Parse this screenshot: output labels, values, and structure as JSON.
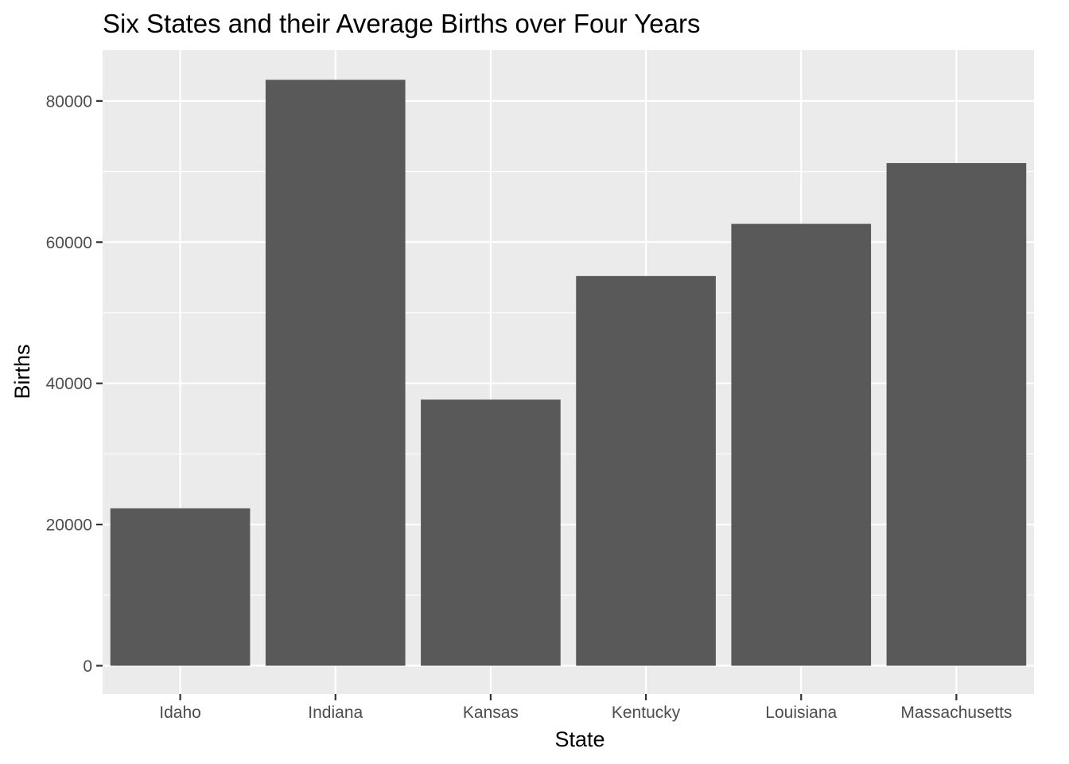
{
  "chart_data": {
    "type": "bar",
    "title": "Six States and their Average Births over Four Years",
    "xlabel": "State",
    "ylabel": "Births",
    "categories": [
      "Idaho",
      "Indiana",
      "Kansas",
      "Kentucky",
      "Louisiana",
      "Massachusetts"
    ],
    "values": [
      22300,
      83000,
      37700,
      55200,
      62600,
      71200
    ],
    "ylim": [
      -4000,
      87200
    ],
    "yticks": [
      0,
      20000,
      40000,
      60000,
      80000
    ],
    "ytick_labels": [
      "0",
      "20000",
      "40000",
      "60000",
      "80000"
    ],
    "grid": true,
    "legend": "none",
    "colors": {
      "bar": "#595959",
      "panel_background": "#ebebeb",
      "grid_line": "#ffffff",
      "tick_label": "#4d4d4d",
      "axis_tick": "#333333",
      "text": "#000000"
    }
  }
}
